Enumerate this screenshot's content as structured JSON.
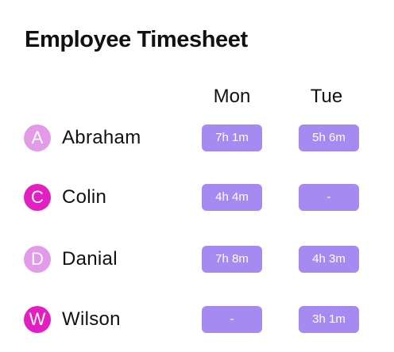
{
  "title": "Employee Timesheet",
  "columns": [
    "Mon",
    "Tue"
  ],
  "colors": {
    "chip": "#a68af1",
    "avatar_light": "#e39ae8",
    "avatar_dark": "#e21fc1"
  },
  "employees": [
    {
      "initial": "A",
      "name": "Abraham",
      "avatar_color": "#e39ae8",
      "mon": "7h 1m",
      "tue": "5h 6m"
    },
    {
      "initial": "C",
      "name": "Colin",
      "avatar_color": "#e21fc1",
      "mon": "4h 4m",
      "tue": "-"
    },
    {
      "initial": "D",
      "name": "Danial",
      "avatar_color": "#e39ae8",
      "mon": "7h 8m",
      "tue": "4h 3m"
    },
    {
      "initial": "W",
      "name": "Wilson",
      "avatar_color": "#e21fc1",
      "mon": "-",
      "tue": "3h 1m"
    }
  ]
}
